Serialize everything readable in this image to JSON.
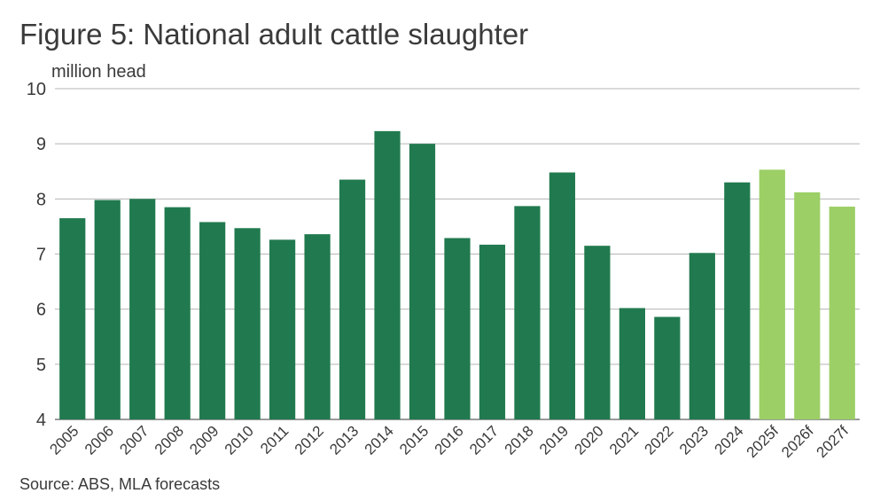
{
  "title": "Figure 5: National adult cattle slaughter",
  "unit_label": "million head",
  "source": "Source: ABS, MLA forecasts",
  "colors": {
    "actual": "#217a4f",
    "forecast": "#9ccf66",
    "grid": "#b5b5b5",
    "axis": "#7a7a7a"
  },
  "chart_data": {
    "type": "bar",
    "title": "Figure 5: National adult cattle slaughter",
    "ylabel": "million head",
    "xlabel": "",
    "ylim": [
      4,
      10
    ],
    "yticks": [
      4,
      5,
      6,
      7,
      8,
      9,
      10
    ],
    "grid": true,
    "categories": [
      "2005",
      "2006",
      "2007",
      "2008",
      "2009",
      "2010",
      "2011",
      "2012",
      "2013",
      "2014",
      "2015",
      "2016",
      "2017",
      "2018",
      "2019",
      "2020",
      "2021",
      "2022",
      "2023",
      "2024",
      "2025f",
      "2026f",
      "2027f"
    ],
    "values": [
      7.65,
      7.98,
      8.0,
      7.85,
      7.58,
      7.47,
      7.26,
      7.36,
      8.35,
      9.23,
      9.0,
      7.29,
      7.17,
      7.87,
      8.48,
      7.15,
      6.02,
      5.86,
      7.02,
      8.3,
      8.53,
      8.12,
      7.86
    ],
    "forecast": [
      false,
      false,
      false,
      false,
      false,
      false,
      false,
      false,
      false,
      false,
      false,
      false,
      false,
      false,
      false,
      false,
      false,
      false,
      false,
      false,
      true,
      true,
      true
    ]
  }
}
